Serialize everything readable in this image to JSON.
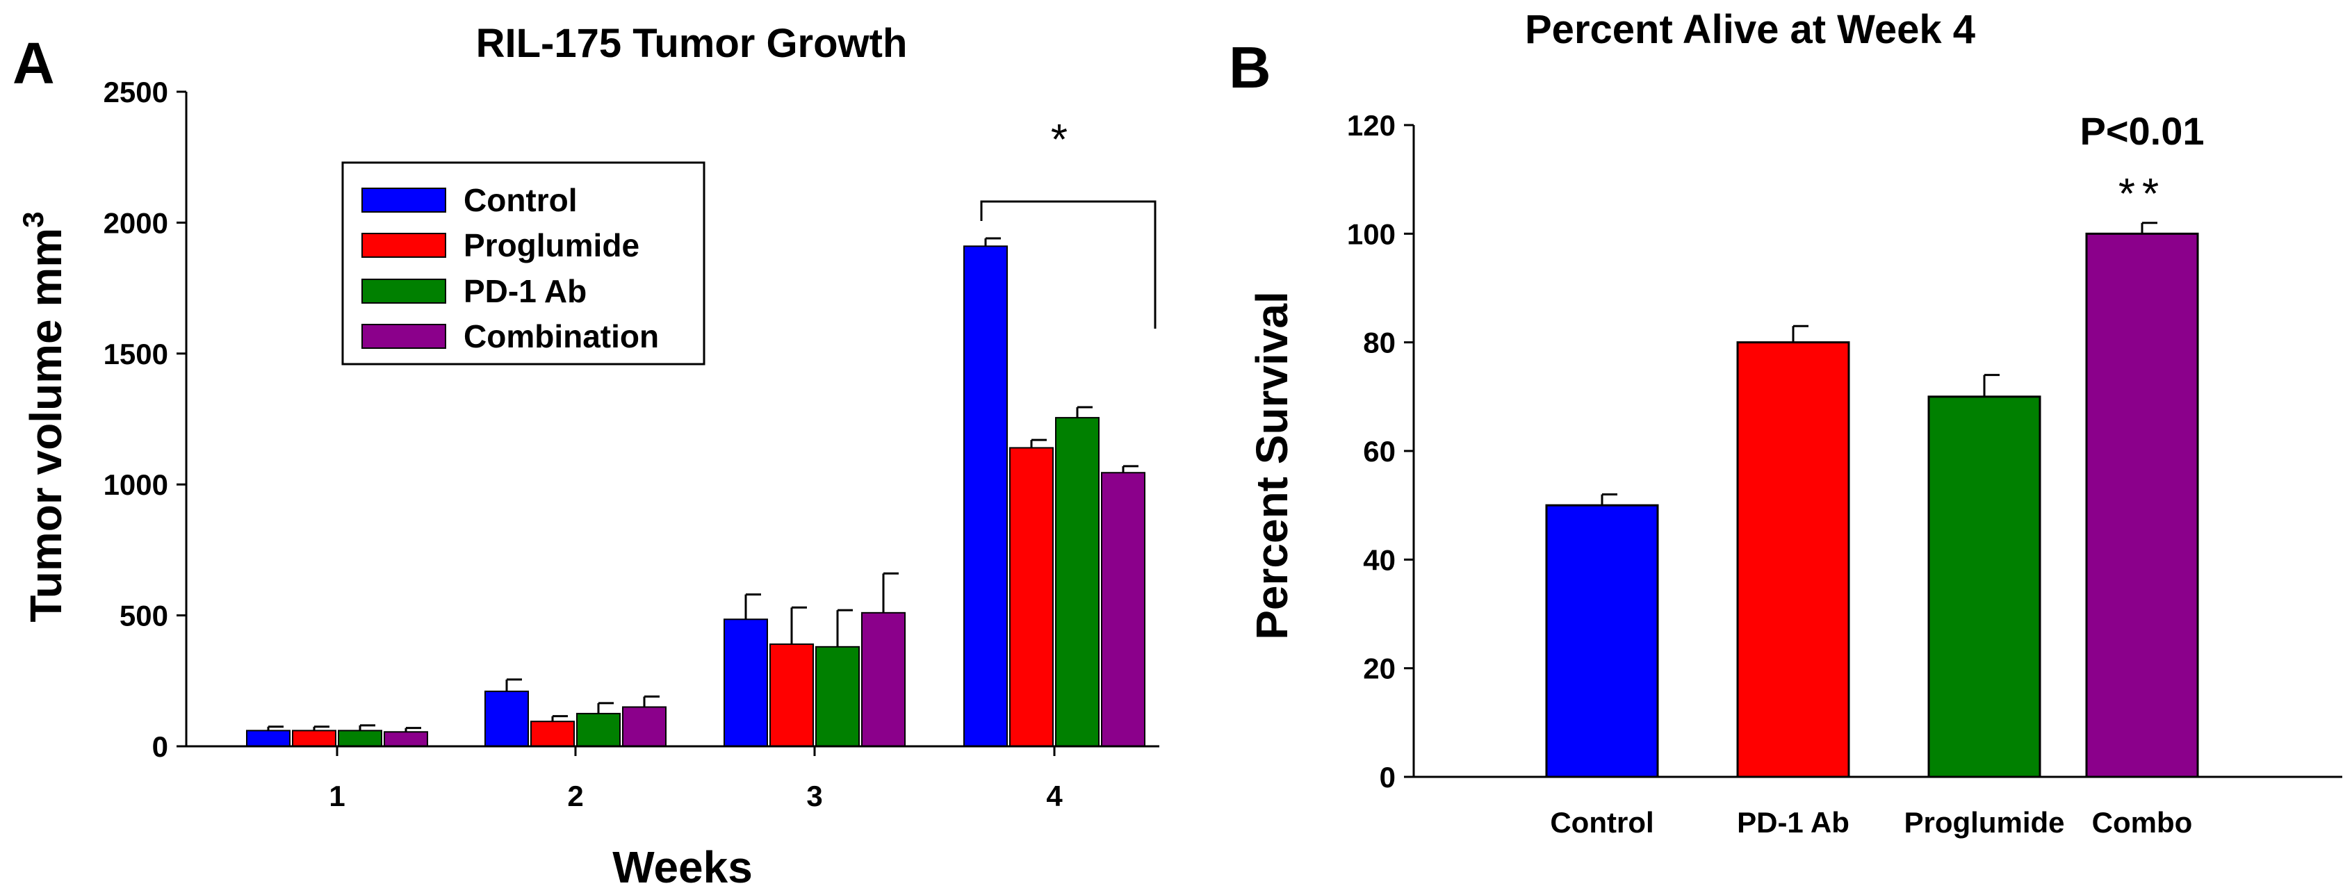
{
  "panels": {
    "a_letter": "A",
    "b_letter": "B"
  },
  "chart_data": [
    {
      "type": "bar",
      "title": "RIL-175 Tumor Growth",
      "xlabel": "Weeks",
      "ylabel": "Tumor volume mm",
      "ylabel_superscript": "3",
      "ylim": [
        0,
        2500
      ],
      "yticks": [
        "0",
        "500",
        "1000",
        "1500",
        "2000",
        "2500"
      ],
      "categories": [
        "1",
        "2",
        "3",
        "4"
      ],
      "legend_position": "top-left inside",
      "series": [
        {
          "name": "Control",
          "color": "#0000ff",
          "values": [
            60,
            210,
            485,
            1910
          ],
          "errors": [
            15,
            45,
            95,
            30
          ]
        },
        {
          "name": "Proglumide",
          "color": "#ff0000",
          "values": [
            60,
            95,
            390,
            1140
          ],
          "errors": [
            15,
            20,
            140,
            30
          ]
        },
        {
          "name": "PD-1 Ab",
          "color": "#008000",
          "values": [
            60,
            125,
            380,
            1255
          ],
          "errors": [
            20,
            40,
            140,
            40
          ]
        },
        {
          "name": "Combination",
          "color": "#8b008b",
          "values": [
            55,
            150,
            510,
            1045
          ],
          "errors": [
            15,
            40,
            150,
            25
          ]
        }
      ],
      "annotations": {
        "significance": "*"
      }
    },
    {
      "type": "bar",
      "title": "Percent Alive at Week 4",
      "xlabel": "",
      "ylabel": "Percent Survival",
      "ylim": [
        0,
        120
      ],
      "yticks": [
        "0",
        "20",
        "40",
        "60",
        "80",
        "100",
        "120"
      ],
      "categories": [
        "Control",
        "PD-1 Ab",
        "Proglumide",
        "Combo"
      ],
      "colors": [
        "#0000ff",
        "#ff0000",
        "#008000",
        "#8b008b"
      ],
      "values": [
        50,
        80,
        70,
        100
      ],
      "errors": [
        2,
        3,
        4,
        2
      ],
      "annotations": {
        "p_value": "P<0.01",
        "significance": "**"
      }
    }
  ]
}
